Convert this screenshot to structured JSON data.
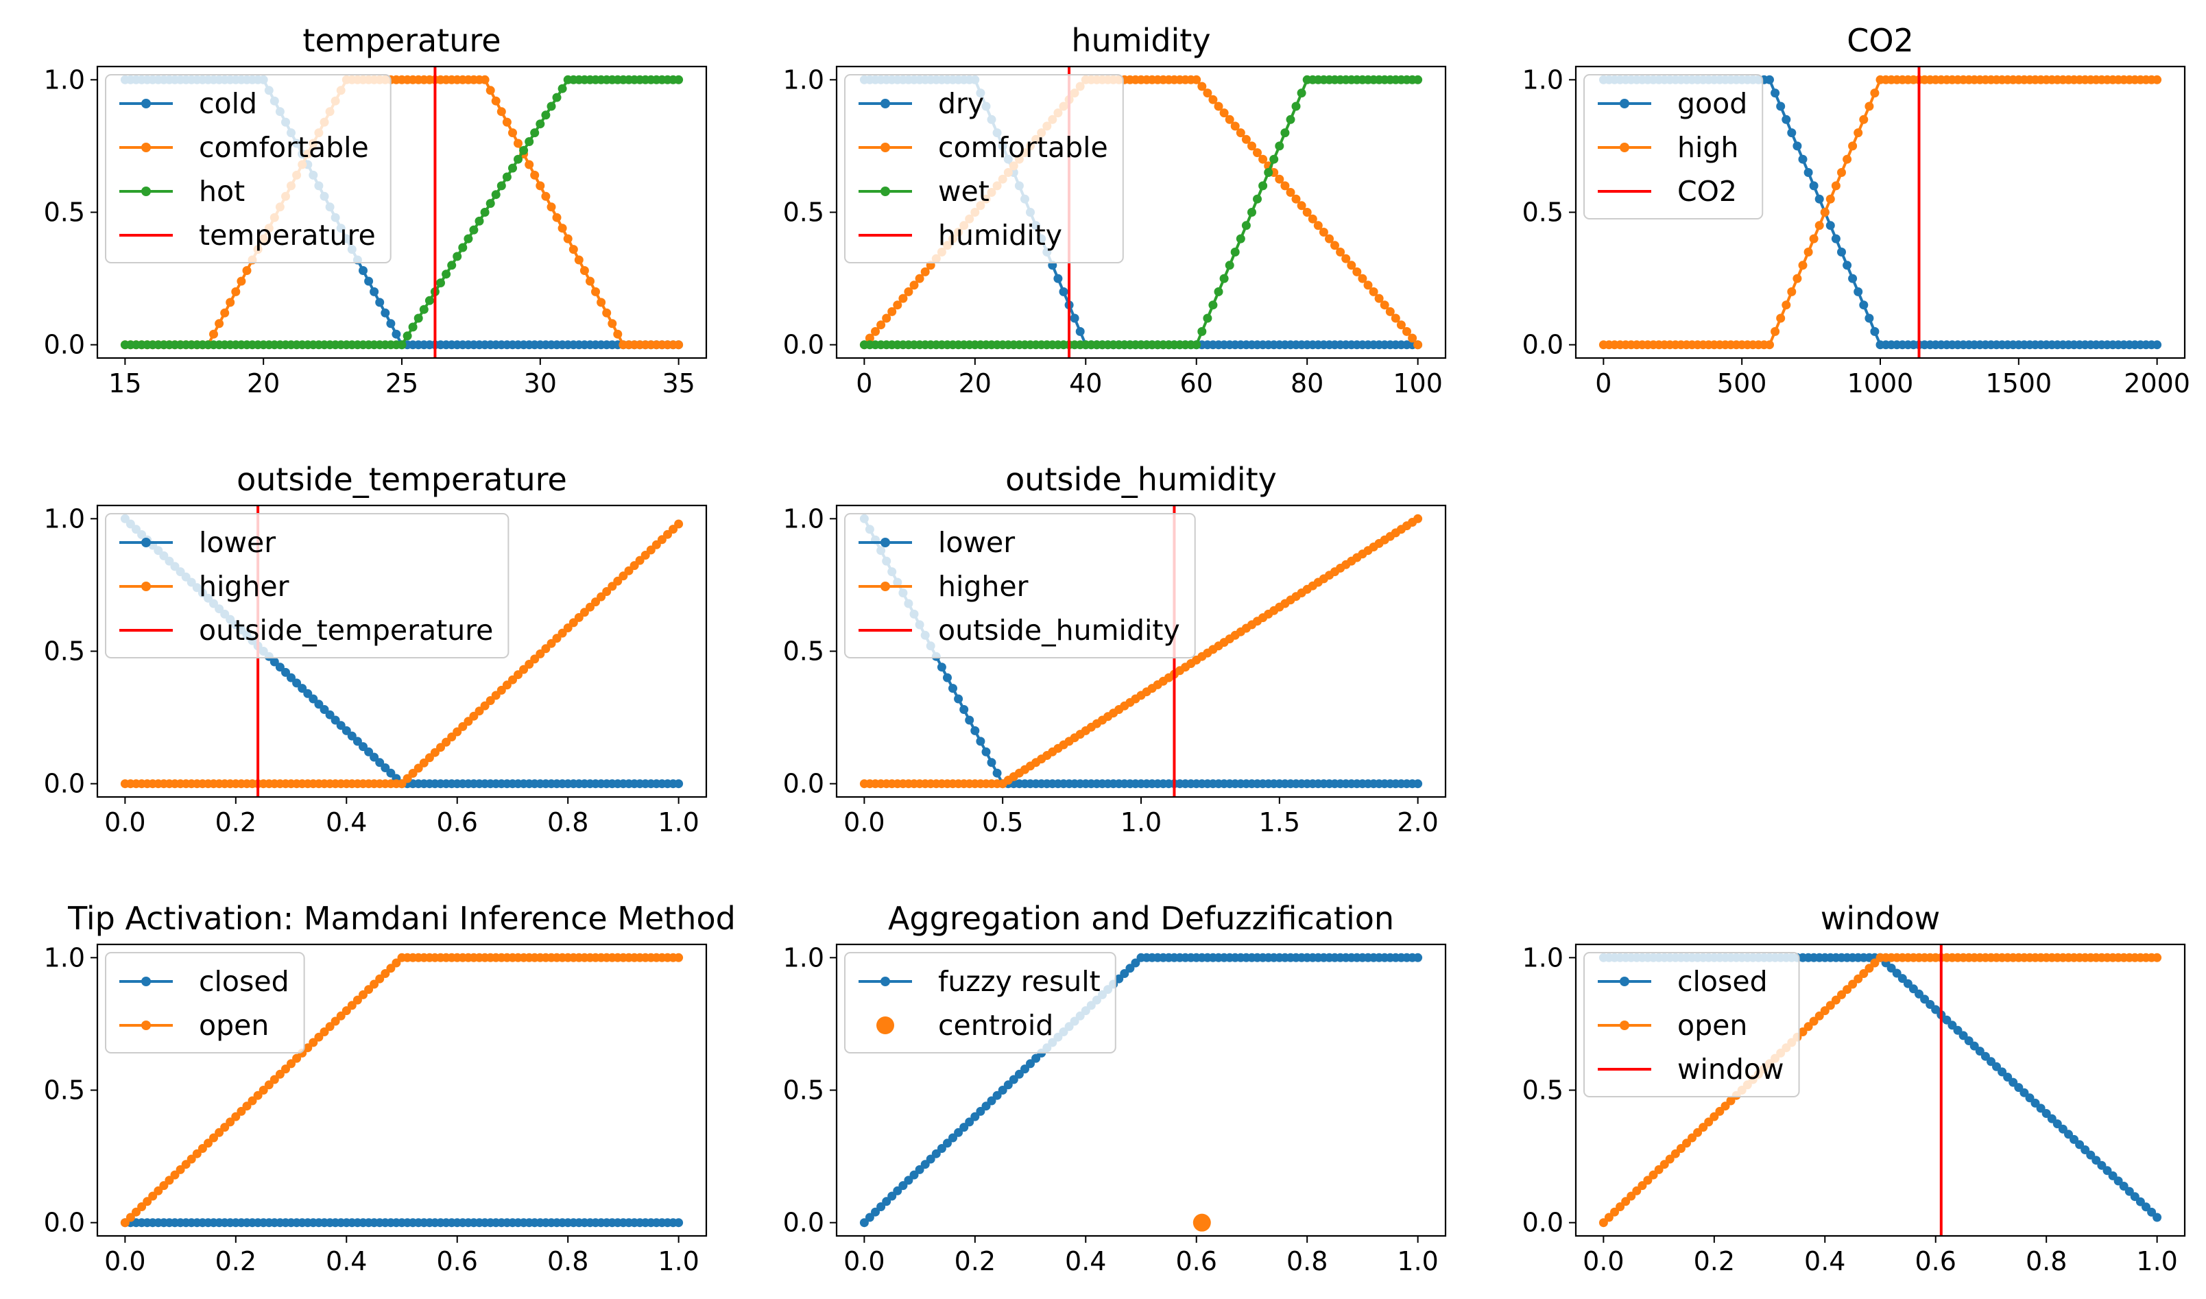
{
  "colors": {
    "blue": "#1f77b4",
    "orange": "#ff7f0e",
    "green": "#2ca02c",
    "red": "#ff0000"
  },
  "chart_data": [
    {
      "type": "line",
      "title": "temperature",
      "xlabel": "",
      "ylabel": "",
      "xlim": [
        14,
        36
      ],
      "ylim": [
        -0.05,
        1.05
      ],
      "xticks": [
        15,
        20,
        25,
        30,
        35
      ],
      "xtick_labels": [
        "15",
        "20",
        "25",
        "30",
        "35"
      ],
      "yticks": [
        0,
        0.5,
        1
      ],
      "ytick_labels": [
        "0.0",
        "0.5",
        "1.0"
      ],
      "legend": "top-left",
      "series": [
        {
          "name": "cold",
          "color": "#1f77b4",
          "x": [
            15,
            20,
            25,
            35
          ],
          "y": [
            1,
            1,
            0,
            0
          ]
        },
        {
          "name": "comfortable",
          "color": "#ff7f0e",
          "x": [
            15,
            18,
            23,
            28,
            33,
            35
          ],
          "y": [
            0,
            0,
            1,
            1,
            0,
            0
          ]
        },
        {
          "name": "hot",
          "color": "#2ca02c",
          "x": [
            15,
            25,
            31,
            35
          ],
          "y": [
            0,
            0,
            1,
            1
          ]
        }
      ],
      "vline": {
        "name": "temperature",
        "color": "#ff0000",
        "x": 26.2
      }
    },
    {
      "type": "line",
      "title": "humidity",
      "xlabel": "",
      "ylabel": "",
      "xlim": [
        -5,
        105
      ],
      "ylim": [
        -0.05,
        1.05
      ],
      "xticks": [
        0,
        20,
        40,
        60,
        80,
        100
      ],
      "xtick_labels": [
        "0",
        "20",
        "40",
        "60",
        "80",
        "100"
      ],
      "yticks": [
        0,
        0.5,
        1
      ],
      "ytick_labels": [
        "0.0",
        "0.5",
        "1.0"
      ],
      "legend": "top-left",
      "series": [
        {
          "name": "dry",
          "color": "#1f77b4",
          "x": [
            0,
            20,
            40,
            100
          ],
          "y": [
            1,
            1,
            0,
            0
          ]
        },
        {
          "name": "comfortable",
          "color": "#ff7f0e",
          "x": [
            0,
            40,
            60,
            100
          ],
          "y": [
            0,
            1,
            1,
            0
          ]
        },
        {
          "name": "wet",
          "color": "#2ca02c",
          "x": [
            0,
            60,
            80,
            100
          ],
          "y": [
            0,
            0,
            1,
            1
          ]
        }
      ],
      "vline": {
        "name": "humidity",
        "color": "#ff0000",
        "x": 37
      }
    },
    {
      "type": "line",
      "title": "CO2",
      "xlabel": "",
      "ylabel": "",
      "xlim": [
        -100,
        2100
      ],
      "ylim": [
        -0.05,
        1.05
      ],
      "xticks": [
        0,
        500,
        1000,
        1500,
        2000
      ],
      "xtick_labels": [
        "0",
        "500",
        "1000",
        "1500",
        "2000"
      ],
      "yticks": [
        0,
        0.5,
        1
      ],
      "ytick_labels": [
        "0.0",
        "0.5",
        "1.0"
      ],
      "legend": "top-left",
      "series": [
        {
          "name": "good",
          "color": "#1f77b4",
          "x": [
            0,
            600,
            1000,
            2000
          ],
          "y": [
            1,
            1,
            0,
            0
          ]
        },
        {
          "name": "high",
          "color": "#ff7f0e",
          "x": [
            0,
            600,
            1000,
            2000
          ],
          "y": [
            0,
            0,
            1,
            1
          ]
        }
      ],
      "vline": {
        "name": "CO2",
        "color": "#ff0000",
        "x": 1140
      }
    },
    {
      "type": "line",
      "title": "outside_temperature",
      "xlabel": "",
      "ylabel": "",
      "xlim": [
        -0.05,
        1.05
      ],
      "ylim": [
        -0.05,
        1.05
      ],
      "xticks": [
        0,
        0.2,
        0.4,
        0.6,
        0.8,
        1.0
      ],
      "xtick_labels": [
        "0.0",
        "0.2",
        "0.4",
        "0.6",
        "0.8",
        "1.0"
      ],
      "yticks": [
        0,
        0.5,
        1
      ],
      "ytick_labels": [
        "0.0",
        "0.5",
        "1.0"
      ],
      "legend": "top-left",
      "series": [
        {
          "name": "lower",
          "color": "#1f77b4",
          "x": [
            0,
            0.5,
            1.0
          ],
          "y": [
            1,
            0,
            0
          ]
        },
        {
          "name": "higher",
          "color": "#ff7f0e",
          "x": [
            0,
            0.5,
            1.0
          ],
          "y": [
            0,
            0,
            0.98
          ]
        }
      ],
      "vline": {
        "name": "outside_temperature",
        "color": "#ff0000",
        "x": 0.24
      }
    },
    {
      "type": "line",
      "title": "outside_humidity",
      "xlabel": "",
      "ylabel": "",
      "xlim": [
        -0.1,
        2.1
      ],
      "ylim": [
        -0.05,
        1.05
      ],
      "xticks": [
        0,
        0.5,
        1.0,
        1.5,
        2.0
      ],
      "xtick_labels": [
        "0.0",
        "0.5",
        "1.0",
        "1.5",
        "2.0"
      ],
      "yticks": [
        0,
        0.5,
        1
      ],
      "ytick_labels": [
        "0.0",
        "0.5",
        "1.0"
      ],
      "legend": "top-left",
      "series": [
        {
          "name": "lower",
          "color": "#1f77b4",
          "x": [
            0,
            0.5,
            2.0
          ],
          "y": [
            1,
            0,
            0
          ]
        },
        {
          "name": "higher",
          "color": "#ff7f0e",
          "x": [
            0,
            0.5,
            2.0
          ],
          "y": [
            0,
            0,
            1
          ]
        }
      ],
      "vline": {
        "name": "outside_humidity",
        "color": "#ff0000",
        "x": 1.12
      }
    },
    {
      "type": "line",
      "title": "Tip Activation: Mamdani Inference Method",
      "xlabel": "",
      "ylabel": "",
      "xlim": [
        -0.05,
        1.05
      ],
      "ylim": [
        -0.05,
        1.05
      ],
      "xticks": [
        0,
        0.2,
        0.4,
        0.6,
        0.8,
        1.0
      ],
      "xtick_labels": [
        "0.0",
        "0.2",
        "0.4",
        "0.6",
        "0.8",
        "1.0"
      ],
      "yticks": [
        0,
        0.5,
        1
      ],
      "ytick_labels": [
        "0.0",
        "0.5",
        "1.0"
      ],
      "legend": "top-left",
      "series": [
        {
          "name": "closed",
          "color": "#1f77b4",
          "x": [
            0,
            1.0
          ],
          "y": [
            0,
            0
          ]
        },
        {
          "name": "open",
          "color": "#ff7f0e",
          "x": [
            0,
            0.5,
            1.0
          ],
          "y": [
            0,
            1,
            1
          ]
        }
      ]
    },
    {
      "type": "line",
      "title": "Aggregation and Defuzzification",
      "xlabel": "",
      "ylabel": "",
      "xlim": [
        -0.05,
        1.05
      ],
      "ylim": [
        -0.05,
        1.05
      ],
      "xticks": [
        0,
        0.2,
        0.4,
        0.6,
        0.8,
        1.0
      ],
      "xtick_labels": [
        "0.0",
        "0.2",
        "0.4",
        "0.6",
        "0.8",
        "1.0"
      ],
      "yticks": [
        0,
        0.5,
        1
      ],
      "ytick_labels": [
        "0.0",
        "0.5",
        "1.0"
      ],
      "legend": "top-left",
      "series": [
        {
          "name": "fuzzy result",
          "color": "#1f77b4",
          "x": [
            0,
            0.5,
            1.0
          ],
          "y": [
            0,
            1,
            1
          ]
        }
      ],
      "point": {
        "name": "centroid",
        "color": "#ff7f0e",
        "x": 0.61,
        "y": 0
      }
    },
    {
      "type": "line",
      "title": "window",
      "xlabel": "",
      "ylabel": "",
      "xlim": [
        -0.05,
        1.05
      ],
      "ylim": [
        -0.05,
        1.05
      ],
      "xticks": [
        0,
        0.2,
        0.4,
        0.6,
        0.8,
        1.0
      ],
      "xtick_labels": [
        "0.0",
        "0.2",
        "0.4",
        "0.6",
        "0.8",
        "1.0"
      ],
      "yticks": [
        0,
        0.5,
        1
      ],
      "ytick_labels": [
        "0.0",
        "0.5",
        "1.0"
      ],
      "legend": "top-left",
      "series": [
        {
          "name": "closed",
          "color": "#1f77b4",
          "x": [
            0,
            0.5,
            1.0
          ],
          "y": [
            1,
            1,
            0.02
          ]
        },
        {
          "name": "open",
          "color": "#ff7f0e",
          "x": [
            0,
            0.5,
            1.0
          ],
          "y": [
            0,
            1,
            1
          ]
        }
      ],
      "vline": {
        "name": "window",
        "color": "#ff0000",
        "x": 0.61
      }
    }
  ]
}
